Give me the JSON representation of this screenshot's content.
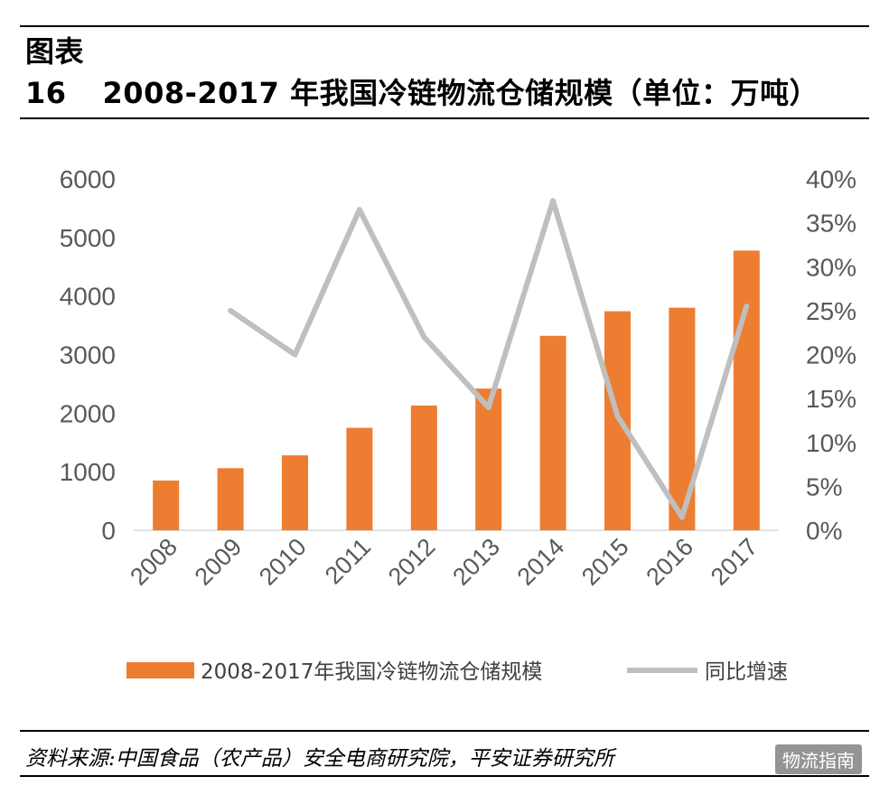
{
  "header": {
    "label": "图表16",
    "title": "2008-2017 年我国冷链物流仓储规模（单位：万吨）"
  },
  "source": "资料来源:中国食品（农产品）安全电商研究院，平安证券研究所",
  "watermark": "物流指南",
  "chart_data": {
    "type": "bar+line",
    "categories": [
      "2008",
      "2009",
      "2010",
      "2011",
      "2012",
      "2013",
      "2014",
      "2015",
      "2016",
      "2017"
    ],
    "series": [
      {
        "name": "2008-2017年我国冷链物流仓储规模",
        "type": "bar",
        "axis": "left",
        "color": "#ED7D31",
        "values": [
          850,
          1060,
          1280,
          1750,
          2130,
          2420,
          3320,
          3740,
          3800,
          4775
        ]
      },
      {
        "name": "同比增速",
        "type": "line",
        "axis": "right",
        "color": "#BFBFBF",
        "values": [
          null,
          0.25,
          0.2,
          0.365,
          0.22,
          0.14,
          0.375,
          0.13,
          0.015,
          0.255
        ]
      }
    ],
    "y_left": {
      "min": 0,
      "max": 6000,
      "ticks": [
        "0",
        "1000",
        "2000",
        "3000",
        "4000",
        "5000",
        "6000"
      ]
    },
    "y_right": {
      "min": 0,
      "max": 0.4,
      "ticks": [
        "0%",
        "5%",
        "10%",
        "15%",
        "20%",
        "25%",
        "30%",
        "35%",
        "40%"
      ]
    },
    "legend": "bottom",
    "grid": false
  }
}
